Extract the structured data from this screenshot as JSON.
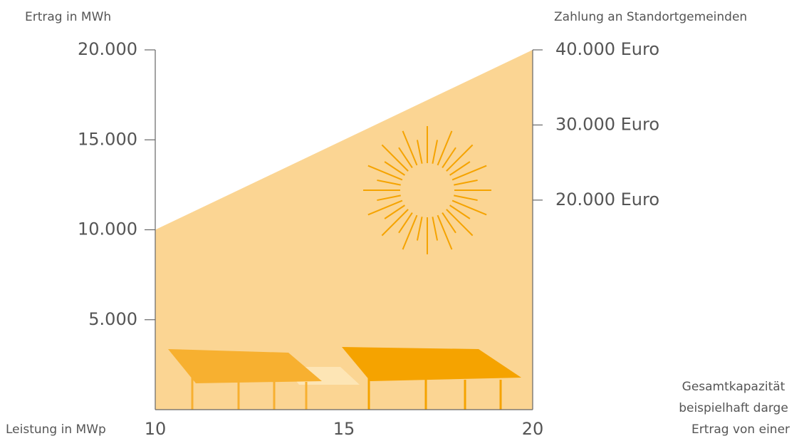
{
  "chart_data": {
    "type": "area",
    "y_label": "Ertrag in MWh",
    "y2_label": "Zahlung an Standortgemeinden",
    "x_label": "Leistung in MWp",
    "x": [
      10,
      20
    ],
    "values": [
      10000,
      20000
    ],
    "color": "#fbd593",
    "xlim": [
      10,
      20
    ],
    "xticks": [
      10,
      15,
      20
    ],
    "ylim": [
      0,
      20000
    ],
    "yticks": [
      {
        "value": 5000,
        "label": "5.000"
      },
      {
        "value": 10000,
        "label": "10.000"
      },
      {
        "value": 15000,
        "label": "15.000"
      },
      {
        "value": 20000,
        "label": "20.000"
      }
    ],
    "y2lim": [
      -7900,
      40000
    ],
    "y2ticks": [
      {
        "value": 20000,
        "label": "20.000 Euro"
      },
      {
        "value": 30000,
        "label": "30.000 Euro"
      },
      {
        "value": 40000,
        "label": "40.000 Euro"
      }
    ],
    "annotation": [
      "Gesamtkapazität",
      "beispielhaft darge",
      "Ertrag von einer"
    ]
  }
}
